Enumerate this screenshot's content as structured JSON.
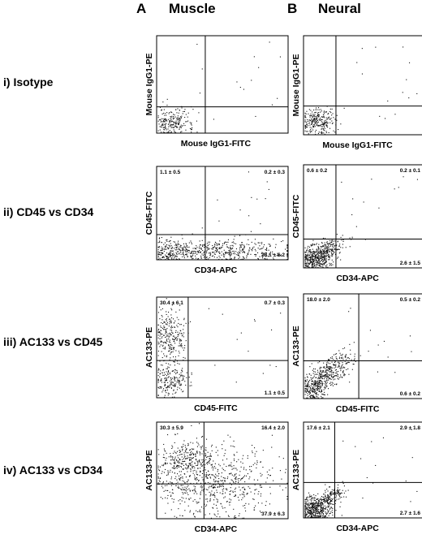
{
  "columns": [
    {
      "letter": "A",
      "title": "Muscle"
    },
    {
      "letter": "B",
      "title": "Neural"
    }
  ],
  "rows": [
    {
      "label": "i) Isotype"
    },
    {
      "label": "ii) CD45 vs CD34"
    },
    {
      "label": "iii) AC133 vs CD45"
    },
    {
      "label": "iv) AC133 vs CD34"
    }
  ],
  "chart_data": [
    {
      "type": "scatter",
      "panel": "A-i",
      "tissue": "Muscle",
      "row": "i) Isotype",
      "xlabel": "Mouse IgG1-FITC",
      "ylabel": "Mouse IgG1-PE",
      "gate": {
        "x": 0.37,
        "y": 0.27
      },
      "quadrants": {
        "upper_left": "",
        "upper_right": "",
        "lower_right": ""
      },
      "population": "Events clustered in lower-left quadrant"
    },
    {
      "type": "scatter",
      "panel": "B-i",
      "tissue": "Neural",
      "row": "i) Isotype",
      "xlabel": "Mouse IgG1-FITC",
      "ylabel": "Mouse IgG1-PE",
      "gate": {
        "x": 0.27,
        "y": 0.29
      },
      "quadrants": {
        "upper_left": "",
        "upper_right": "",
        "lower_right": ""
      },
      "population": "Events clustered in lower-left quadrant"
    },
    {
      "type": "scatter",
      "panel": "A-ii",
      "tissue": "Muscle",
      "row": "ii) CD45 vs CD34",
      "xlabel": "CD34-APC",
      "ylabel": "CD45-FITC",
      "gate": {
        "x": 0.37,
        "y": 0.27
      },
      "quadrants": {
        "upper_left": "1.1 ± 0.5",
        "upper_right": "0.2 ± 0.3",
        "lower_right": "38.1 ± 6.2"
      },
      "population": "Band along lower axis extending into CD34+ region"
    },
    {
      "type": "scatter",
      "panel": "B-ii",
      "tissue": "Neural",
      "row": "ii) CD45 vs CD34",
      "xlabel": "CD34-APC",
      "ylabel": "CD45-FITC",
      "gate": {
        "x": 0.27,
        "y": 0.28
      },
      "quadrants": {
        "upper_left": "0.6 ± 0.2",
        "upper_right": "0.2 ± 0.1",
        "lower_right": "2.6 ± 1.5"
      },
      "population": "Compact cluster in lower-left with diagonal tail"
    },
    {
      "type": "scatter",
      "panel": "A-iii",
      "tissue": "Muscle",
      "row": "iii) AC133 vs CD45",
      "xlabel": "CD45-FITC",
      "ylabel": "AC133-PE",
      "gate": {
        "x": 0.24,
        "y": 0.37
      },
      "quadrants": {
        "upper_left": "30.4 ± 6.1",
        "upper_right": "0.7 ± 0.3",
        "lower_right": "1.1 ± 0.5"
      },
      "population": "Distinct AC133+ CD45- population upper-left plus lower-left cluster"
    },
    {
      "type": "scatter",
      "panel": "B-iii",
      "tissue": "Neural",
      "row": "iii) AC133 vs CD45",
      "xlabel": "CD45-FITC",
      "ylabel": "AC133-PE",
      "gate": {
        "x": 0.46,
        "y": 0.36
      },
      "quadrants": {
        "upper_left": "18.0 ± 2.0",
        "upper_right": "0.5 ± 0.2",
        "lower_right": "0.6 ± 0.2"
      },
      "population": "Diagonal spread from lower-left"
    },
    {
      "type": "scatter",
      "panel": "A-iv",
      "tissue": "Muscle",
      "row": "iv) AC133 vs CD34",
      "xlabel": "CD34-APC",
      "ylabel": "AC133-PE",
      "gate": {
        "x": 0.36,
        "y": 0.36
      },
      "quadrants": {
        "upper_left": "30.3 ± 5.9",
        "upper_right": "16.4 ± 2.0",
        "lower_right": "37.9 ± 6.3"
      },
      "population": "Broad spread over all quadrants"
    },
    {
      "type": "scatter",
      "panel": "B-iv",
      "tissue": "Neural",
      "row": "iv) AC133 vs CD34",
      "xlabel": "CD34-APC",
      "ylabel": "AC133-PE",
      "gate": {
        "x": 0.26,
        "y": 0.37
      },
      "quadrants": {
        "upper_left": "17.6 ± 2.1",
        "upper_right": "2.9 ± 1.8",
        "lower_right": "2.7 ± 1.6"
      },
      "population": "Dense lower-left cluster with diagonal tail"
    }
  ]
}
